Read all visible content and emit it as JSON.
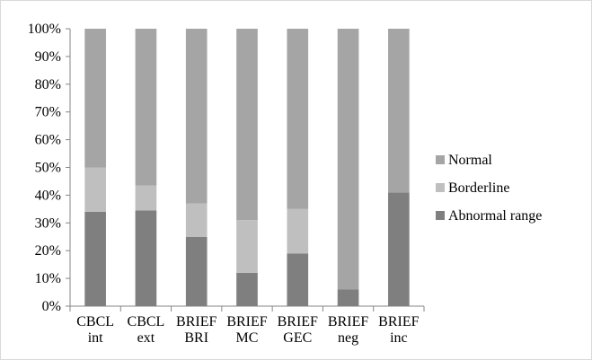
{
  "chart_data": {
    "type": "bar",
    "stacked": "percent",
    "categories": [
      [
        "CBCL",
        "int"
      ],
      [
        "CBCL",
        "ext"
      ],
      [
        "BRIEF",
        "BRI"
      ],
      [
        "BRIEF",
        "MC"
      ],
      [
        "BRIEF",
        "GEC"
      ],
      [
        "BRIEF",
        "neg"
      ],
      [
        "BRIEF",
        "inc"
      ]
    ],
    "series": [
      {
        "name": "Abnormal range",
        "values": [
          34,
          34.5,
          25,
          12,
          19,
          6,
          41
        ],
        "color": "#7f7f7f"
      },
      {
        "name": "Borderline",
        "values": [
          16,
          9,
          12,
          19,
          16,
          0,
          0
        ],
        "color": "#bfbfbf"
      },
      {
        "name": "Normal",
        "values": [
          50,
          56.5,
          63,
          69,
          65,
          94,
          59
        ],
        "color": "#a5a5a5"
      }
    ],
    "legend_order": [
      "Normal",
      "Borderline",
      "Abnormal range"
    ],
    "legend_position": "right",
    "ylim": [
      0,
      100
    ],
    "yticks": [
      "0%",
      "10%",
      "20%",
      "30%",
      "40%",
      "50%",
      "60%",
      "70%",
      "80%",
      "90%",
      "100%"
    ],
    "grid": false,
    "title": "",
    "xlabel": "",
    "ylabel": ""
  }
}
